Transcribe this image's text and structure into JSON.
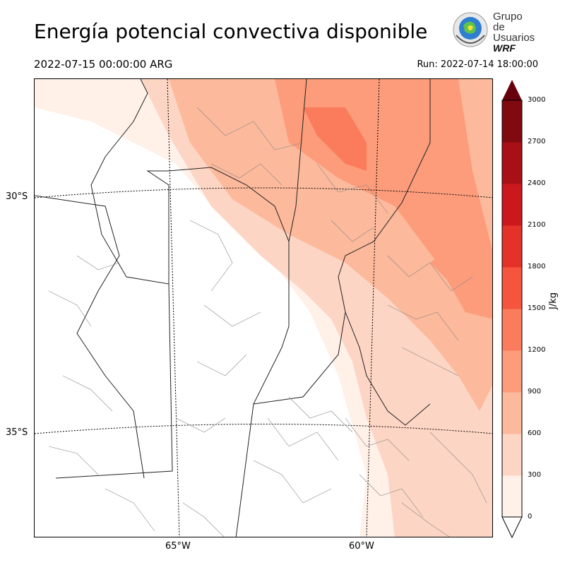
{
  "title": "Energía potencial convectiva disponible",
  "valid_time": "2022-07-15 00:00:00 ARG",
  "run_time": "Run: 2022-07-14 18:00:00",
  "logo": {
    "line1": "Grupo de",
    "line2": "Usuarios",
    "line3": "WRF"
  },
  "lat_labels": [
    "30°S",
    "35°S"
  ],
  "lon_labels": [
    "65°W",
    "60°W"
  ],
  "colorbar": {
    "unit": "J/kg",
    "ticks": [
      "0",
      "300",
      "600",
      "900",
      "1200",
      "1500",
      "1800",
      "2100",
      "2400",
      "2700",
      "3000"
    ],
    "colors": [
      "#fff0e8",
      "#fdd5c4",
      "#fcb99c",
      "#fc9c7b",
      "#fb7c5c",
      "#f5553c",
      "#e53228",
      "#cb181d",
      "#a91016",
      "#800a10"
    ]
  },
  "legend_levels": [
    0,
    300,
    600,
    900,
    1200,
    1500,
    1800,
    2100,
    2400,
    2700,
    3000
  ]
}
